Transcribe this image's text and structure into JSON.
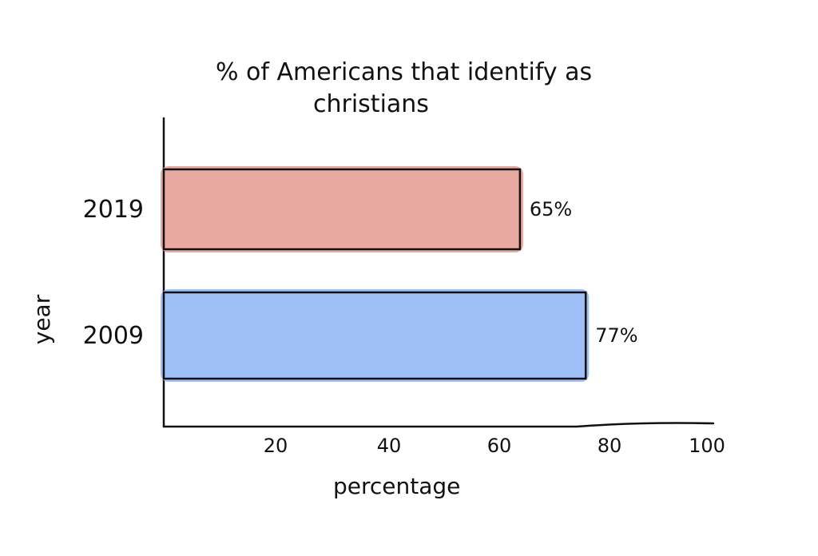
{
  "chart_data": {
    "type": "bar",
    "orientation": "horizontal",
    "title_line1": "% of Americans that identify as",
    "title_line2": "christians",
    "xlabel": "percentage",
    "ylabel": "year",
    "categories": [
      "2019",
      "2009"
    ],
    "values": [
      65,
      77
    ],
    "data_labels": [
      "65%",
      "77%"
    ],
    "colors": [
      "#e8a9a0",
      "#9fc0f6"
    ],
    "xlim": [
      0,
      100
    ],
    "xticks": [
      20,
      40,
      60,
      80,
      100
    ],
    "xtick_labels": [
      "20",
      "40",
      "60",
      "80",
      "100"
    ],
    "grid": false
  }
}
